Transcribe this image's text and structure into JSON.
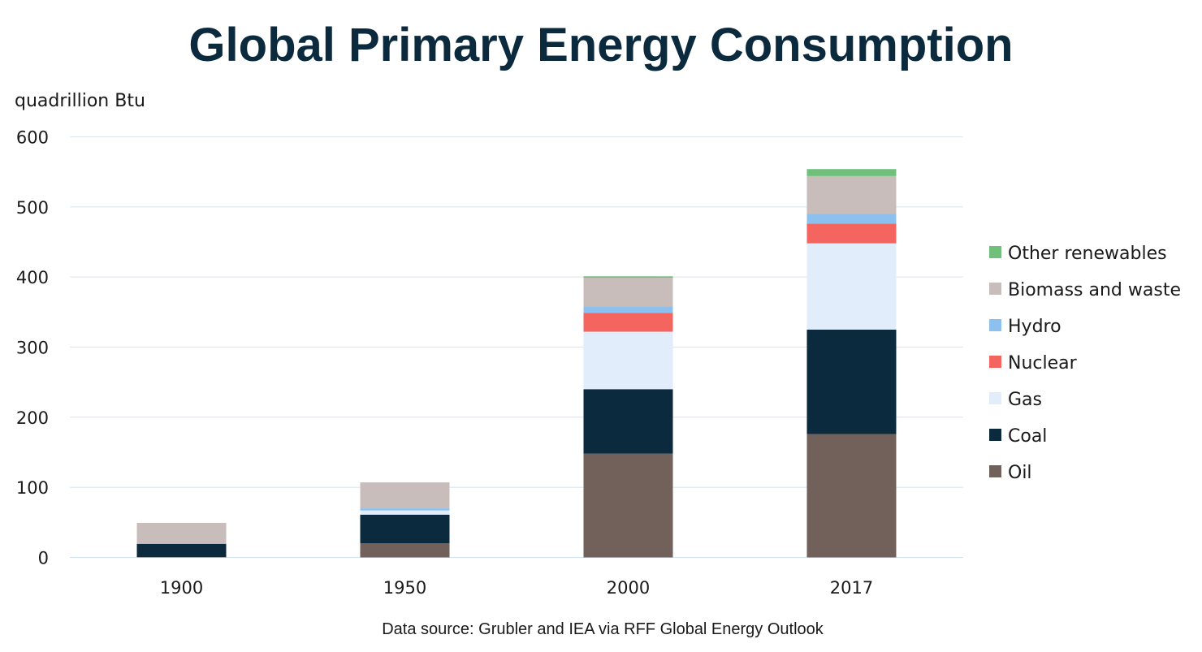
{
  "title": "Global Primary Energy Consumption",
  "source": "Data source: Grubler and IEA via RFF Global Energy Outlook",
  "chart_data": {
    "type": "bar",
    "stacked": true,
    "title": "Global Primary Energy Consumption",
    "ylabel": "quadrillion Btu",
    "xlabel": "",
    "categories": [
      "1900",
      "1950",
      "2000",
      "2017"
    ],
    "ylim": [
      0,
      600
    ],
    "yticks": [
      0,
      100,
      200,
      300,
      400,
      500,
      600
    ],
    "grid": true,
    "legend_position": "right",
    "series": [
      {
        "name": "Oil",
        "color": "#72615a",
        "values": [
          0.5,
          20,
          148,
          176
        ]
      },
      {
        "name": "Coal",
        "color": "#0b2a3d",
        "values": [
          19,
          41,
          92,
          149
        ]
      },
      {
        "name": "Gas",
        "color": "#e1edfa",
        "values": [
          0.5,
          6,
          82,
          123
        ]
      },
      {
        "name": "Nuclear",
        "color": "#f4655f",
        "values": [
          0,
          0,
          27,
          28
        ]
      },
      {
        "name": "Hydro",
        "color": "#8cc1ef",
        "values": [
          0.3,
          3,
          9,
          14
        ]
      },
      {
        "name": "Biomass and waste",
        "color": "#c8bdba",
        "values": [
          29,
          37,
          41,
          54
        ]
      },
      {
        "name": "Other renewables",
        "color": "#70c07b",
        "values": [
          0,
          0,
          2,
          10
        ]
      }
    ]
  }
}
